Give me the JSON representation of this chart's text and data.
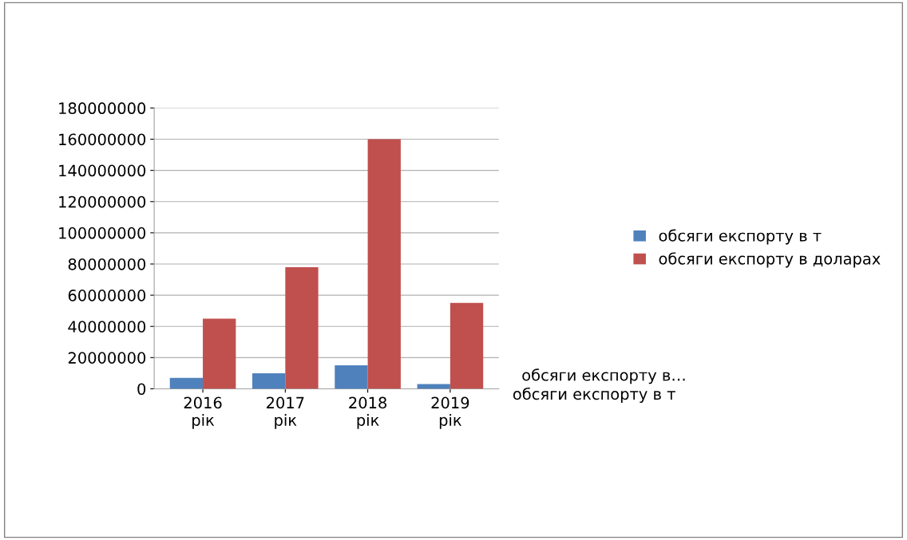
{
  "chart_data": {
    "type": "bar",
    "categories": [
      "2016 рік",
      "2017 рік",
      "2018 рік",
      "2019 рік"
    ],
    "series": [
      {
        "name": "обсяги експорту в т",
        "color": "#4f81bd",
        "values": [
          7000000,
          10000000,
          15000000,
          3000000
        ]
      },
      {
        "name": "обсяги експорту в доларах",
        "color": "#c0504d",
        "values": [
          45000000,
          78000000,
          160000000,
          55000000
        ]
      }
    ],
    "ylim": [
      0,
      180000000
    ],
    "yticks": [
      0,
      20000000,
      40000000,
      60000000,
      80000000,
      100000000,
      120000000,
      140000000,
      160000000,
      180000000
    ],
    "grid": "y",
    "legend": "right",
    "annotations": [
      "обсяги експорту в…",
      "обсяги експорту в т"
    ]
  }
}
